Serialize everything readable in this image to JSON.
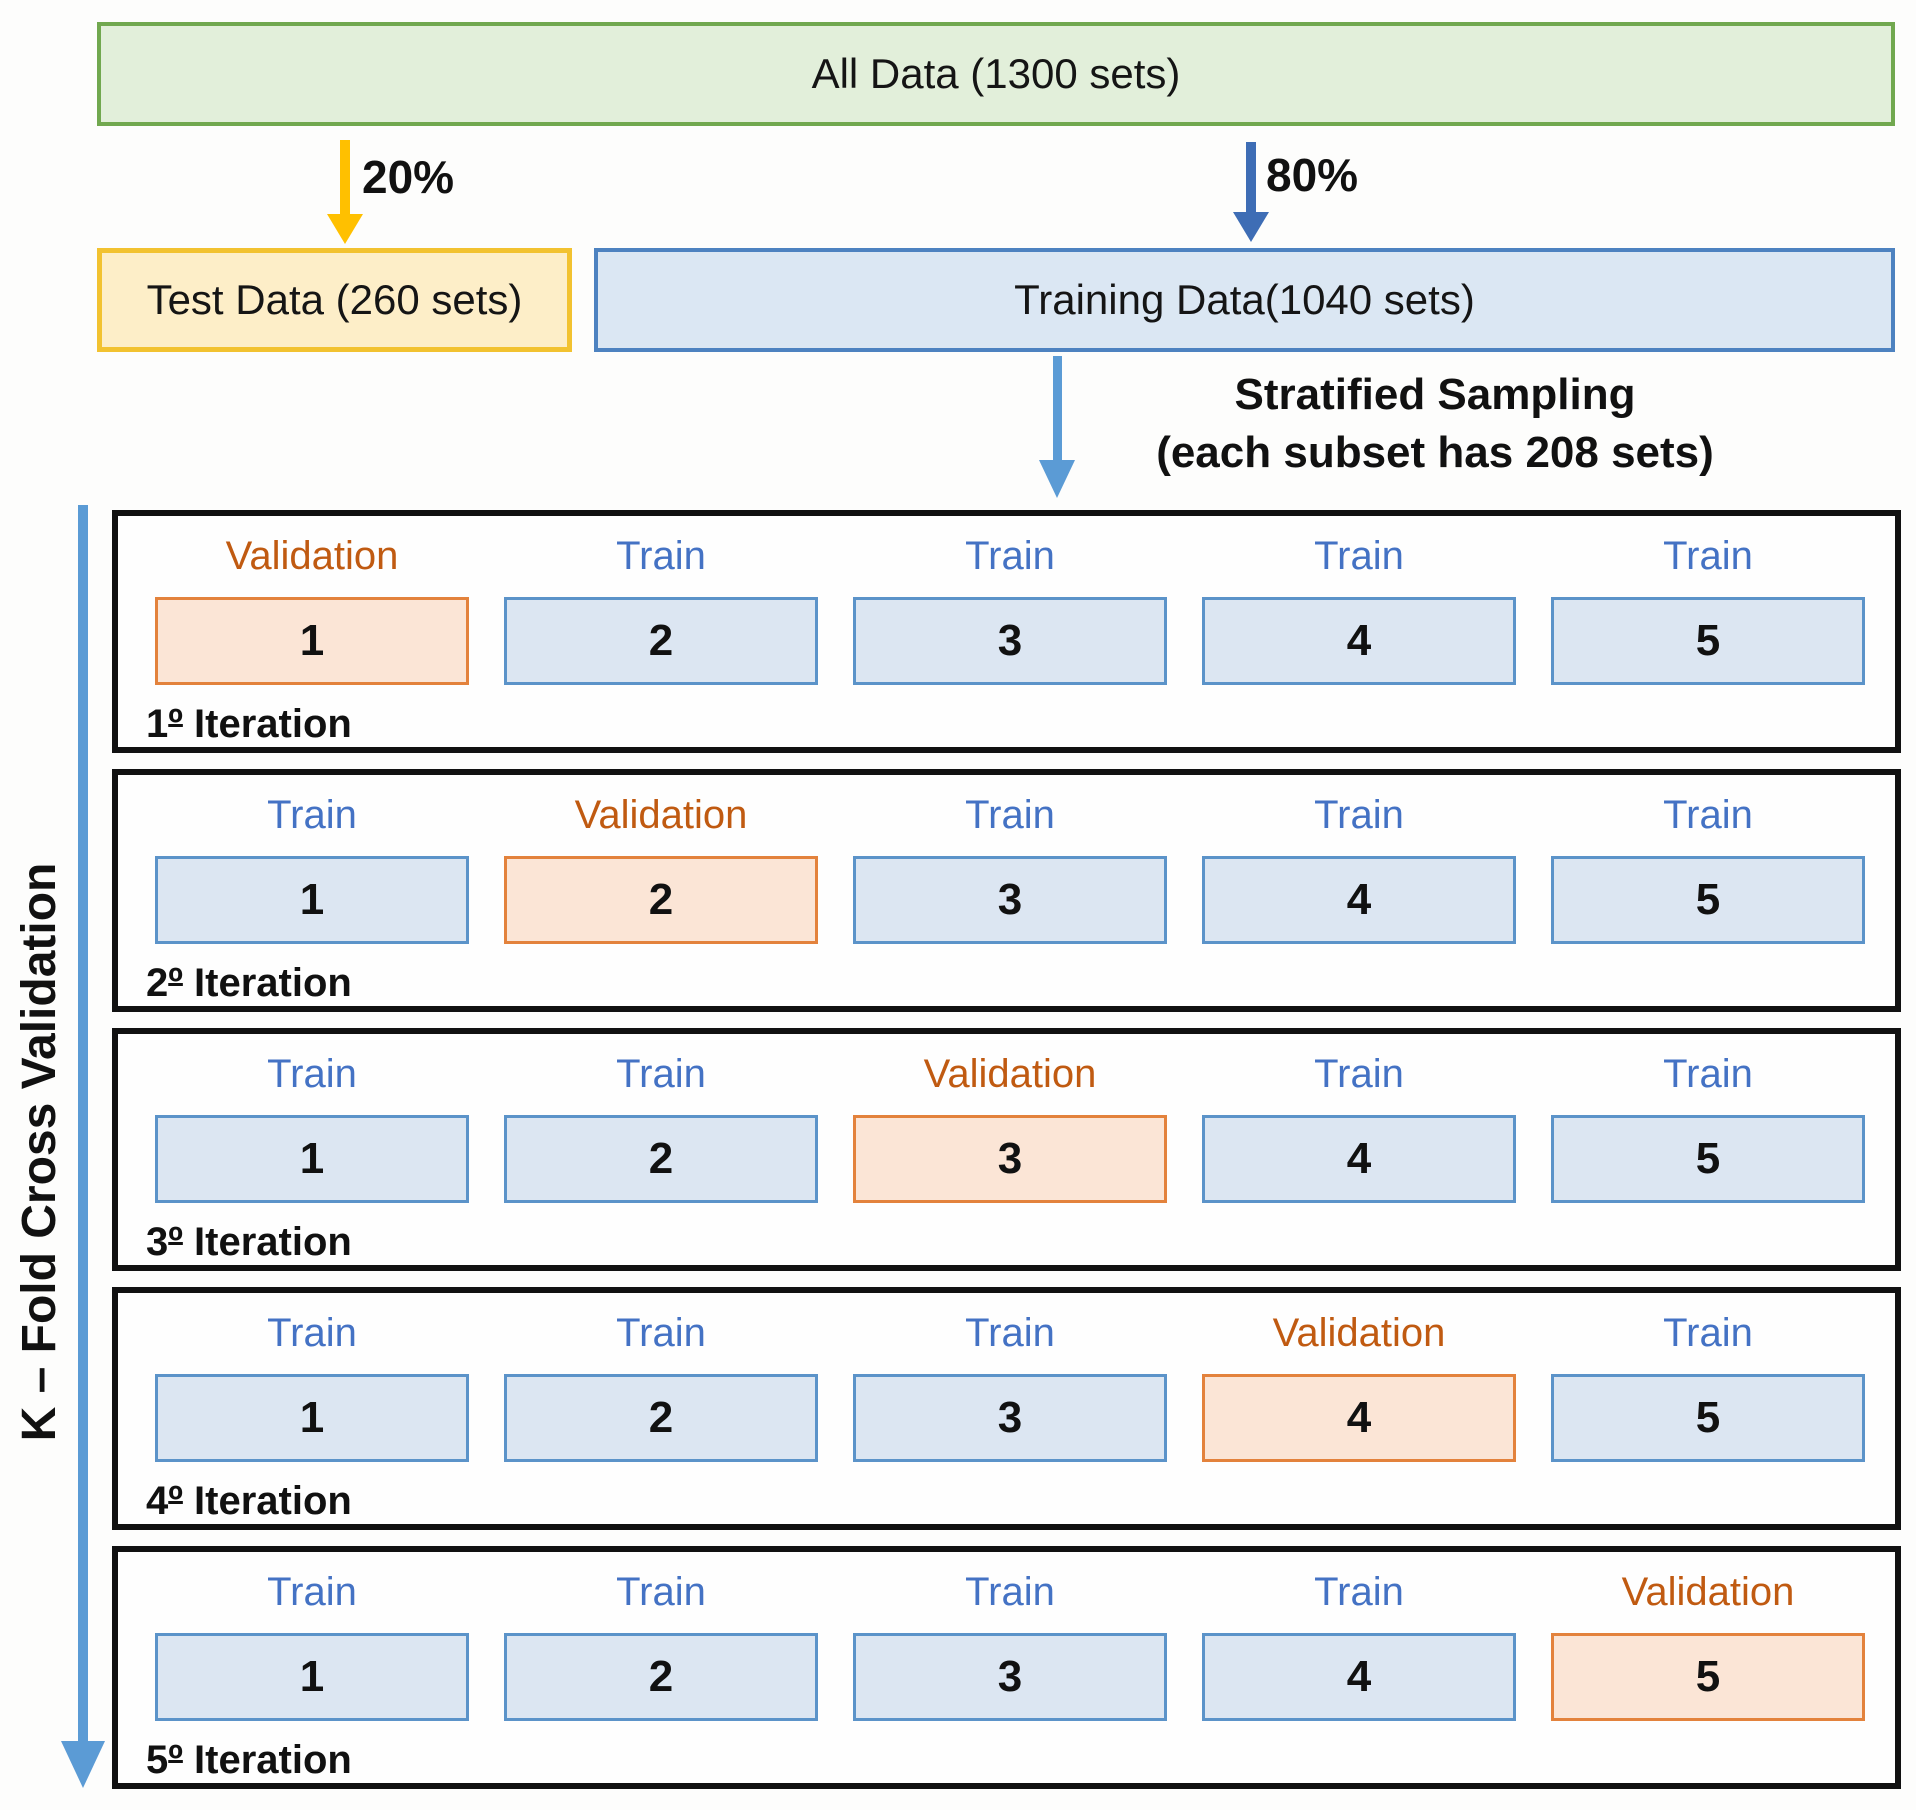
{
  "all_data_label": "All Data (1300 sets)",
  "split": {
    "test_pct": "20%",
    "train_pct": "80%",
    "test_box_label": "Test Data (260 sets)",
    "train_box_label": "Training Data(1040 sets)"
  },
  "sampling": {
    "line1": "Stratified Sampling",
    "line2": "(each subset has 208 sets)"
  },
  "side_label": "K – Fold Cross Validation",
  "colors": {
    "all_data_fill": "#e2efda",
    "all_data_border": "#71a84f",
    "test_fill": "#fdeec8",
    "test_border": "#f2c230",
    "train_fill": "#dbe7f3",
    "train_border": "#4d82c0",
    "subset_train_fill": "#dce6f2",
    "subset_train_border": "#5b93c9",
    "subset_val_fill": "#fbe5d6",
    "subset_val_border": "#e3823c",
    "train_label_text": "#4472c4",
    "validation_label_text": "#c05a11",
    "yellow_arrow": "#ffc000",
    "dark_blue_arrow": "#3e6db5",
    "light_blue_arrow": "#5b9bd5",
    "block_border": "#111111"
  },
  "folds": [
    {
      "caption_num": "1",
      "caption_ord": "º",
      "caption_word": "Iteration",
      "columns": [
        {
          "label": "Validation",
          "num": "1"
        },
        {
          "label": "Train",
          "num": "2"
        },
        {
          "label": "Train",
          "num": "3"
        },
        {
          "label": "Train",
          "num": "4"
        },
        {
          "label": "Train",
          "num": "5"
        }
      ]
    },
    {
      "caption_num": "2",
      "caption_ord": "º",
      "caption_word": "Iteration",
      "columns": [
        {
          "label": "Train",
          "num": "1"
        },
        {
          "label": "Validation",
          "num": "2"
        },
        {
          "label": "Train",
          "num": "3"
        },
        {
          "label": "Train",
          "num": "4"
        },
        {
          "label": "Train",
          "num": "5"
        }
      ]
    },
    {
      "caption_num": "3",
      "caption_ord": "º",
      "caption_word": "Iteration",
      "columns": [
        {
          "label": "Train",
          "num": "1"
        },
        {
          "label": "Train",
          "num": "2"
        },
        {
          "label": "Validation",
          "num": "3"
        },
        {
          "label": "Train",
          "num": "4"
        },
        {
          "label": "Train",
          "num": "5"
        }
      ]
    },
    {
      "caption_num": "4",
      "caption_ord": "º",
      "caption_word": "Iteration",
      "columns": [
        {
          "label": "Train",
          "num": "1"
        },
        {
          "label": "Train",
          "num": "2"
        },
        {
          "label": "Train",
          "num": "3"
        },
        {
          "label": "Validation",
          "num": "4"
        },
        {
          "label": "Train",
          "num": "5"
        }
      ]
    },
    {
      "caption_num": "5",
      "caption_ord": "º",
      "caption_word": "Iteration",
      "columns": [
        {
          "label": "Train",
          "num": "1"
        },
        {
          "label": "Train",
          "num": "2"
        },
        {
          "label": "Train",
          "num": "3"
        },
        {
          "label": "Train",
          "num": "4"
        },
        {
          "label": "Validation",
          "num": "5"
        }
      ]
    }
  ]
}
